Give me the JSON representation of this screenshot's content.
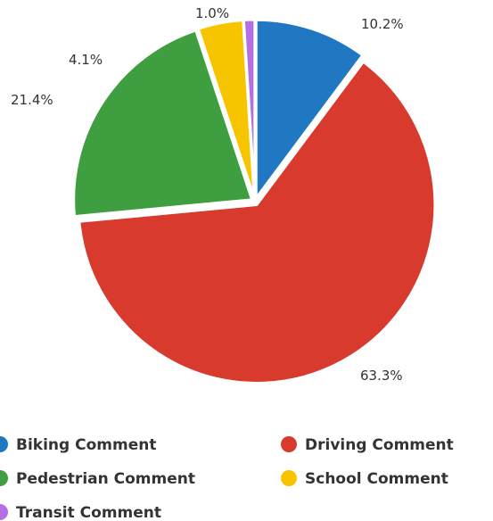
{
  "chart_data": {
    "type": "pie",
    "categories": [
      "Biking Comment",
      "Driving Comment",
      "Pedestrian Comment",
      "School Comment",
      "Transit Comment"
    ],
    "values": [
      10.2,
      63.3,
      21.4,
      4.1,
      1.0
    ],
    "data_labels": [
      "10.2%",
      "63.3%",
      "21.4%",
      "4.1%",
      "1.0%"
    ],
    "colors": [
      "#1f78c1",
      "#d83b2e",
      "#3f9e3f",
      "#f6c500",
      "#b46fe2"
    ],
    "legend_position": "bottom"
  }
}
